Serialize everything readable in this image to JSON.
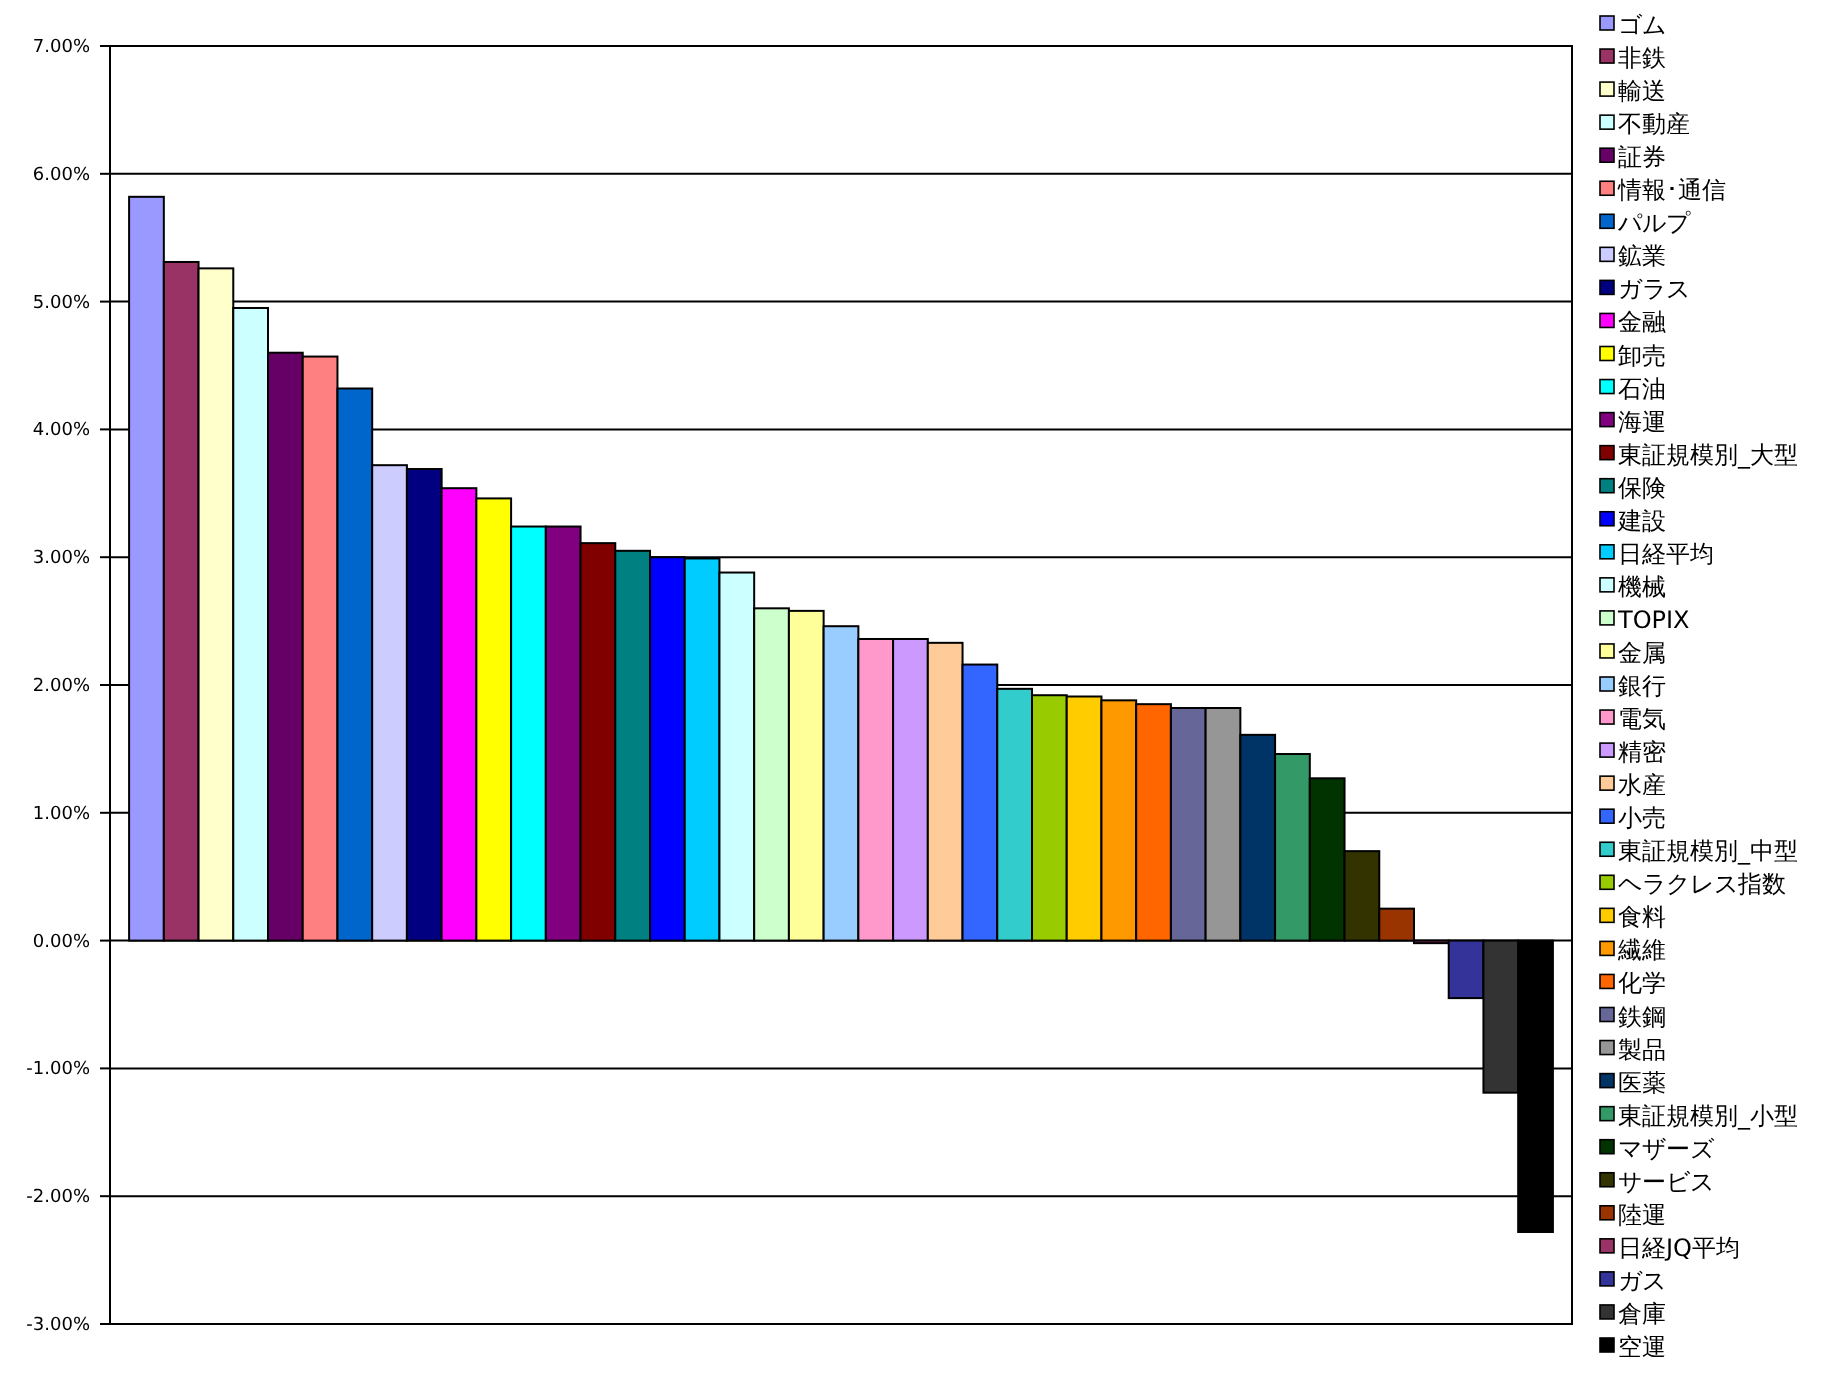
{
  "chart_data": {
    "type": "bar",
    "categories": [
      null,
      null,
      null,
      null,
      null,
      null,
      null,
      null,
      null,
      null,
      null,
      null,
      null,
      null,
      null,
      null,
      null,
      null,
      null,
      null,
      null,
      null,
      null,
      null,
      null,
      null,
      null,
      null,
      null,
      null,
      null,
      null,
      null,
      null,
      null,
      null,
      null,
      null,
      null,
      null,
      null
    ],
    "series": [
      {
        "name": "ゴム",
        "color": "#9999ff",
        "values": [
          5.82,
          null,
          null,
          null,
          null,
          null,
          null,
          null,
          null,
          null,
          null,
          null,
          null,
          null,
          null,
          null,
          null,
          null,
          null,
          null,
          null,
          null,
          null,
          null,
          null,
          null,
          null,
          null,
          null,
          null,
          null,
          null,
          null,
          null,
          null,
          null,
          null,
          null,
          null,
          null,
          null
        ]
      },
      {
        "name": "非鉄",
        "color": "#993366",
        "values": [
          null,
          5.31,
          null,
          null,
          null,
          null,
          null,
          null,
          null,
          null,
          null,
          null,
          null,
          null,
          null,
          null,
          null,
          null,
          null,
          null,
          null,
          null,
          null,
          null,
          null,
          null,
          null,
          null,
          null,
          null,
          null,
          null,
          null,
          null,
          null,
          null,
          null,
          null,
          null,
          null,
          null
        ]
      },
      {
        "name": "輸送",
        "color": "#ffffcc",
        "values": [
          null,
          null,
          5.26,
          null,
          null,
          null,
          null,
          null,
          null,
          null,
          null,
          null,
          null,
          null,
          null,
          null,
          null,
          null,
          null,
          null,
          null,
          null,
          null,
          null,
          null,
          null,
          null,
          null,
          null,
          null,
          null,
          null,
          null,
          null,
          null,
          null,
          null,
          null,
          null,
          null,
          null
        ]
      },
      {
        "name": "不動産",
        "color": "#ccffff",
        "values": [
          null,
          null,
          null,
          4.95,
          null,
          null,
          null,
          null,
          null,
          null,
          null,
          null,
          null,
          null,
          null,
          null,
          null,
          null,
          null,
          null,
          null,
          null,
          null,
          null,
          null,
          null,
          null,
          null,
          null,
          null,
          null,
          null,
          null,
          null,
          null,
          null,
          null,
          null,
          null,
          null,
          null
        ]
      },
      {
        "name": "証券",
        "color": "#660066",
        "values": [
          null,
          null,
          null,
          null,
          4.6,
          null,
          null,
          null,
          null,
          null,
          null,
          null,
          null,
          null,
          null,
          null,
          null,
          null,
          null,
          null,
          null,
          null,
          null,
          null,
          null,
          null,
          null,
          null,
          null,
          null,
          null,
          null,
          null,
          null,
          null,
          null,
          null,
          null,
          null,
          null,
          null
        ]
      },
      {
        "name": "情報･通信",
        "color": "#ff8080",
        "values": [
          null,
          null,
          null,
          null,
          null,
          4.57,
          null,
          null,
          null,
          null,
          null,
          null,
          null,
          null,
          null,
          null,
          null,
          null,
          null,
          null,
          null,
          null,
          null,
          null,
          null,
          null,
          null,
          null,
          null,
          null,
          null,
          null,
          null,
          null,
          null,
          null,
          null,
          null,
          null,
          null,
          null
        ]
      },
      {
        "name": "パルプ",
        "color": "#0066cc",
        "values": [
          null,
          null,
          null,
          null,
          null,
          null,
          4.32,
          null,
          null,
          null,
          null,
          null,
          null,
          null,
          null,
          null,
          null,
          null,
          null,
          null,
          null,
          null,
          null,
          null,
          null,
          null,
          null,
          null,
          null,
          null,
          null,
          null,
          null,
          null,
          null,
          null,
          null,
          null,
          null,
          null,
          null
        ]
      },
      {
        "name": "鉱業",
        "color": "#ccccff",
        "values": [
          null,
          null,
          null,
          null,
          null,
          null,
          null,
          3.72,
          null,
          null,
          null,
          null,
          null,
          null,
          null,
          null,
          null,
          null,
          null,
          null,
          null,
          null,
          null,
          null,
          null,
          null,
          null,
          null,
          null,
          null,
          null,
          null,
          null,
          null,
          null,
          null,
          null,
          null,
          null,
          null,
          null
        ]
      },
      {
        "name": "ガラス",
        "color": "#000080",
        "values": [
          null,
          null,
          null,
          null,
          null,
          null,
          null,
          null,
          3.69,
          null,
          null,
          null,
          null,
          null,
          null,
          null,
          null,
          null,
          null,
          null,
          null,
          null,
          null,
          null,
          null,
          null,
          null,
          null,
          null,
          null,
          null,
          null,
          null,
          null,
          null,
          null,
          null,
          null,
          null,
          null,
          null
        ]
      },
      {
        "name": "金融",
        "color": "#ff00ff",
        "values": [
          null,
          null,
          null,
          null,
          null,
          null,
          null,
          null,
          null,
          3.54,
          null,
          null,
          null,
          null,
          null,
          null,
          null,
          null,
          null,
          null,
          null,
          null,
          null,
          null,
          null,
          null,
          null,
          null,
          null,
          null,
          null,
          null,
          null,
          null,
          null,
          null,
          null,
          null,
          null,
          null,
          null
        ]
      },
      {
        "name": "卸売",
        "color": "#ffff00",
        "values": [
          null,
          null,
          null,
          null,
          null,
          null,
          null,
          null,
          null,
          null,
          3.46,
          null,
          null,
          null,
          null,
          null,
          null,
          null,
          null,
          null,
          null,
          null,
          null,
          null,
          null,
          null,
          null,
          null,
          null,
          null,
          null,
          null,
          null,
          null,
          null,
          null,
          null,
          null,
          null,
          null,
          null
        ]
      },
      {
        "name": "石油",
        "color": "#00ffff",
        "values": [
          null,
          null,
          null,
          null,
          null,
          null,
          null,
          null,
          null,
          null,
          null,
          3.24,
          null,
          null,
          null,
          null,
          null,
          null,
          null,
          null,
          null,
          null,
          null,
          null,
          null,
          null,
          null,
          null,
          null,
          null,
          null,
          null,
          null,
          null,
          null,
          null,
          null,
          null,
          null,
          null,
          null
        ]
      },
      {
        "name": "海運",
        "color": "#800080",
        "values": [
          null,
          null,
          null,
          null,
          null,
          null,
          null,
          null,
          null,
          null,
          null,
          null,
          3.24,
          null,
          null,
          null,
          null,
          null,
          null,
          null,
          null,
          null,
          null,
          null,
          null,
          null,
          null,
          null,
          null,
          null,
          null,
          null,
          null,
          null,
          null,
          null,
          null,
          null,
          null,
          null,
          null
        ]
      },
      {
        "name": "東証規模別_大型",
        "color": "#800000",
        "values": [
          null,
          null,
          null,
          null,
          null,
          null,
          null,
          null,
          null,
          null,
          null,
          null,
          null,
          3.11,
          null,
          null,
          null,
          null,
          null,
          null,
          null,
          null,
          null,
          null,
          null,
          null,
          null,
          null,
          null,
          null,
          null,
          null,
          null,
          null,
          null,
          null,
          null,
          null,
          null,
          null,
          null
        ]
      },
      {
        "name": "保険",
        "color": "#008080",
        "values": [
          null,
          null,
          null,
          null,
          null,
          null,
          null,
          null,
          null,
          null,
          null,
          null,
          null,
          null,
          3.05,
          null,
          null,
          null,
          null,
          null,
          null,
          null,
          null,
          null,
          null,
          null,
          null,
          null,
          null,
          null,
          null,
          null,
          null,
          null,
          null,
          null,
          null,
          null,
          null,
          null,
          null
        ]
      },
      {
        "name": "建設",
        "color": "#0000ff",
        "values": [
          null,
          null,
          null,
          null,
          null,
          null,
          null,
          null,
          null,
          null,
          null,
          null,
          null,
          null,
          null,
          3.0,
          null,
          null,
          null,
          null,
          null,
          null,
          null,
          null,
          null,
          null,
          null,
          null,
          null,
          null,
          null,
          null,
          null,
          null,
          null,
          null,
          null,
          null,
          null,
          null,
          null
        ]
      },
      {
        "name": "日経平均",
        "color": "#00ccff",
        "values": [
          null,
          null,
          null,
          null,
          null,
          null,
          null,
          null,
          null,
          null,
          null,
          null,
          null,
          null,
          null,
          null,
          2.99,
          null,
          null,
          null,
          null,
          null,
          null,
          null,
          null,
          null,
          null,
          null,
          null,
          null,
          null,
          null,
          null,
          null,
          null,
          null,
          null,
          null,
          null,
          null,
          null
        ]
      },
      {
        "name": "機械",
        "color": "#ccffff",
        "values": [
          null,
          null,
          null,
          null,
          null,
          null,
          null,
          null,
          null,
          null,
          null,
          null,
          null,
          null,
          null,
          null,
          null,
          2.88,
          null,
          null,
          null,
          null,
          null,
          null,
          null,
          null,
          null,
          null,
          null,
          null,
          null,
          null,
          null,
          null,
          null,
          null,
          null,
          null,
          null,
          null,
          null
        ]
      },
      {
        "name": "TOPIX",
        "color": "#ccffcc",
        "values": [
          null,
          null,
          null,
          null,
          null,
          null,
          null,
          null,
          null,
          null,
          null,
          null,
          null,
          null,
          null,
          null,
          null,
          null,
          2.6,
          null,
          null,
          null,
          null,
          null,
          null,
          null,
          null,
          null,
          null,
          null,
          null,
          null,
          null,
          null,
          null,
          null,
          null,
          null,
          null,
          null,
          null
        ]
      },
      {
        "name": "金属",
        "color": "#ffff99",
        "values": [
          null,
          null,
          null,
          null,
          null,
          null,
          null,
          null,
          null,
          null,
          null,
          null,
          null,
          null,
          null,
          null,
          null,
          null,
          null,
          2.58,
          null,
          null,
          null,
          null,
          null,
          null,
          null,
          null,
          null,
          null,
          null,
          null,
          null,
          null,
          null,
          null,
          null,
          null,
          null,
          null,
          null
        ]
      },
      {
        "name": "銀行",
        "color": "#99ccff",
        "values": [
          null,
          null,
          null,
          null,
          null,
          null,
          null,
          null,
          null,
          null,
          null,
          null,
          null,
          null,
          null,
          null,
          null,
          null,
          null,
          null,
          2.46,
          null,
          null,
          null,
          null,
          null,
          null,
          null,
          null,
          null,
          null,
          null,
          null,
          null,
          null,
          null,
          null,
          null,
          null,
          null,
          null
        ]
      },
      {
        "name": "電気",
        "color": "#ff99cc",
        "values": [
          null,
          null,
          null,
          null,
          null,
          null,
          null,
          null,
          null,
          null,
          null,
          null,
          null,
          null,
          null,
          null,
          null,
          null,
          null,
          null,
          null,
          2.36,
          null,
          null,
          null,
          null,
          null,
          null,
          null,
          null,
          null,
          null,
          null,
          null,
          null,
          null,
          null,
          null,
          null,
          null,
          null
        ]
      },
      {
        "name": "精密",
        "color": "#cc99ff",
        "values": [
          null,
          null,
          null,
          null,
          null,
          null,
          null,
          null,
          null,
          null,
          null,
          null,
          null,
          null,
          null,
          null,
          null,
          null,
          null,
          null,
          null,
          null,
          2.36,
          null,
          null,
          null,
          null,
          null,
          null,
          null,
          null,
          null,
          null,
          null,
          null,
          null,
          null,
          null,
          null,
          null,
          null
        ]
      },
      {
        "name": "水産",
        "color": "#ffcc99",
        "values": [
          null,
          null,
          null,
          null,
          null,
          null,
          null,
          null,
          null,
          null,
          null,
          null,
          null,
          null,
          null,
          null,
          null,
          null,
          null,
          null,
          null,
          null,
          null,
          2.33,
          null,
          null,
          null,
          null,
          null,
          null,
          null,
          null,
          null,
          null,
          null,
          null,
          null,
          null,
          null,
          null,
          null
        ]
      },
      {
        "name": "小売",
        "color": "#3366ff",
        "values": [
          null,
          null,
          null,
          null,
          null,
          null,
          null,
          null,
          null,
          null,
          null,
          null,
          null,
          null,
          null,
          null,
          null,
          null,
          null,
          null,
          null,
          null,
          null,
          null,
          2.16,
          null,
          null,
          null,
          null,
          null,
          null,
          null,
          null,
          null,
          null,
          null,
          null,
          null,
          null,
          null,
          null
        ]
      },
      {
        "name": "東証規模別_中型",
        "color": "#33cccc",
        "values": [
          null,
          null,
          null,
          null,
          null,
          null,
          null,
          null,
          null,
          null,
          null,
          null,
          null,
          null,
          null,
          null,
          null,
          null,
          null,
          null,
          null,
          null,
          null,
          null,
          null,
          1.97,
          null,
          null,
          null,
          null,
          null,
          null,
          null,
          null,
          null,
          null,
          null,
          null,
          null,
          null,
          null
        ]
      },
      {
        "name": "ヘラクレス指数",
        "color": "#99cc00",
        "values": [
          null,
          null,
          null,
          null,
          null,
          null,
          null,
          null,
          null,
          null,
          null,
          null,
          null,
          null,
          null,
          null,
          null,
          null,
          null,
          null,
          null,
          null,
          null,
          null,
          null,
          null,
          1.92,
          null,
          null,
          null,
          null,
          null,
          null,
          null,
          null,
          null,
          null,
          null,
          null,
          null,
          null
        ]
      },
      {
        "name": "食料",
        "color": "#ffcc00",
        "values": [
          null,
          null,
          null,
          null,
          null,
          null,
          null,
          null,
          null,
          null,
          null,
          null,
          null,
          null,
          null,
          null,
          null,
          null,
          null,
          null,
          null,
          null,
          null,
          null,
          null,
          null,
          null,
          1.91,
          null,
          null,
          null,
          null,
          null,
          null,
          null,
          null,
          null,
          null,
          null,
          null,
          null
        ]
      },
      {
        "name": "繊維",
        "color": "#ff9900",
        "values": [
          null,
          null,
          null,
          null,
          null,
          null,
          null,
          null,
          null,
          null,
          null,
          null,
          null,
          null,
          null,
          null,
          null,
          null,
          null,
          null,
          null,
          null,
          null,
          null,
          null,
          null,
          null,
          null,
          1.88,
          null,
          null,
          null,
          null,
          null,
          null,
          null,
          null,
          null,
          null,
          null,
          null
        ]
      },
      {
        "name": "化学",
        "color": "#ff6600",
        "values": [
          null,
          null,
          null,
          null,
          null,
          null,
          null,
          null,
          null,
          null,
          null,
          null,
          null,
          null,
          null,
          null,
          null,
          null,
          null,
          null,
          null,
          null,
          null,
          null,
          null,
          null,
          null,
          null,
          null,
          1.85,
          null,
          null,
          null,
          null,
          null,
          null,
          null,
          null,
          null,
          null,
          null
        ]
      },
      {
        "name": "鉄鋼",
        "color": "#666699",
        "values": [
          null,
          null,
          null,
          null,
          null,
          null,
          null,
          null,
          null,
          null,
          null,
          null,
          null,
          null,
          null,
          null,
          null,
          null,
          null,
          null,
          null,
          null,
          null,
          null,
          null,
          null,
          null,
          null,
          null,
          null,
          1.82,
          null,
          null,
          null,
          null,
          null,
          null,
          null,
          null,
          null,
          null
        ]
      },
      {
        "name": "製品",
        "color": "#969696",
        "values": [
          null,
          null,
          null,
          null,
          null,
          null,
          null,
          null,
          null,
          null,
          null,
          null,
          null,
          null,
          null,
          null,
          null,
          null,
          null,
          null,
          null,
          null,
          null,
          null,
          null,
          null,
          null,
          null,
          null,
          null,
          null,
          1.82,
          null,
          null,
          null,
          null,
          null,
          null,
          null,
          null,
          null
        ]
      },
      {
        "name": "医薬",
        "color": "#003366",
        "values": [
          null,
          null,
          null,
          null,
          null,
          null,
          null,
          null,
          null,
          null,
          null,
          null,
          null,
          null,
          null,
          null,
          null,
          null,
          null,
          null,
          null,
          null,
          null,
          null,
          null,
          null,
          null,
          null,
          null,
          null,
          null,
          null,
          1.61,
          null,
          null,
          null,
          null,
          null,
          null,
          null,
          null
        ]
      },
      {
        "name": "東証規模別_小型",
        "color": "#339966",
        "values": [
          null,
          null,
          null,
          null,
          null,
          null,
          null,
          null,
          null,
          null,
          null,
          null,
          null,
          null,
          null,
          null,
          null,
          null,
          null,
          null,
          null,
          null,
          null,
          null,
          null,
          null,
          null,
          null,
          null,
          null,
          null,
          null,
          null,
          1.46,
          null,
          null,
          null,
          null,
          null,
          null,
          null
        ]
      },
      {
        "name": "マザーズ",
        "color": "#003300",
        "values": [
          null,
          null,
          null,
          null,
          null,
          null,
          null,
          null,
          null,
          null,
          null,
          null,
          null,
          null,
          null,
          null,
          null,
          null,
          null,
          null,
          null,
          null,
          null,
          null,
          null,
          null,
          null,
          null,
          null,
          null,
          null,
          null,
          null,
          null,
          1.27,
          null,
          null,
          null,
          null,
          null,
          null
        ]
      },
      {
        "name": "サービス",
        "color": "#333300",
        "values": [
          null,
          null,
          null,
          null,
          null,
          null,
          null,
          null,
          null,
          null,
          null,
          null,
          null,
          null,
          null,
          null,
          null,
          null,
          null,
          null,
          null,
          null,
          null,
          null,
          null,
          null,
          null,
          null,
          null,
          null,
          null,
          null,
          null,
          null,
          null,
          0.7,
          null,
          null,
          null,
          null,
          null
        ]
      },
      {
        "name": "陸運",
        "color": "#993300",
        "values": [
          null,
          null,
          null,
          null,
          null,
          null,
          null,
          null,
          null,
          null,
          null,
          null,
          null,
          null,
          null,
          null,
          null,
          null,
          null,
          null,
          null,
          null,
          null,
          null,
          null,
          null,
          null,
          null,
          null,
          null,
          null,
          null,
          null,
          null,
          null,
          null,
          0.25,
          null,
          null,
          null,
          null
        ]
      },
      {
        "name": "日経JQ平均",
        "color": "#993366",
        "values": [
          null,
          null,
          null,
          null,
          null,
          null,
          null,
          null,
          null,
          null,
          null,
          null,
          null,
          null,
          null,
          null,
          null,
          null,
          null,
          null,
          null,
          null,
          null,
          null,
          null,
          null,
          null,
          null,
          null,
          null,
          null,
          null,
          null,
          null,
          null,
          null,
          null,
          -0.02,
          null,
          null,
          null
        ]
      },
      {
        "name": "ガス",
        "color": "#333399",
        "values": [
          null,
          null,
          null,
          null,
          null,
          null,
          null,
          null,
          null,
          null,
          null,
          null,
          null,
          null,
          null,
          null,
          null,
          null,
          null,
          null,
          null,
          null,
          null,
          null,
          null,
          null,
          null,
          null,
          null,
          null,
          null,
          null,
          null,
          null,
          null,
          null,
          null,
          null,
          -0.45,
          null,
          null
        ]
      },
      {
        "name": "倉庫",
        "color": "#333333",
        "values": [
          null,
          null,
          null,
          null,
          null,
          null,
          null,
          null,
          null,
          null,
          null,
          null,
          null,
          null,
          null,
          null,
          null,
          null,
          null,
          null,
          null,
          null,
          null,
          null,
          null,
          null,
          null,
          null,
          null,
          null,
          null,
          null,
          null,
          null,
          null,
          null,
          null,
          null,
          null,
          -1.19,
          null
        ]
      },
      {
        "name": "空運",
        "color": "#000000",
        "values": [
          null,
          null,
          null,
          null,
          null,
          null,
          null,
          null,
          null,
          null,
          null,
          null,
          null,
          null,
          null,
          null,
          null,
          null,
          null,
          null,
          null,
          null,
          null,
          null,
          null,
          null,
          null,
          null,
          null,
          null,
          null,
          null,
          null,
          null,
          null,
          null,
          null,
          null,
          null,
          null,
          -2.28
        ]
      }
    ],
    "ylim": [
      -3,
      7
    ],
    "yticks": [
      {
        "value": -3,
        "label": "-3.00%"
      },
      {
        "value": -2,
        "label": "-2.00%"
      },
      {
        "value": -1,
        "label": "-1.00%"
      },
      {
        "value": 0,
        "label": "0.00%"
      },
      {
        "value": 1,
        "label": "1.00%"
      },
      {
        "value": 2,
        "label": "2.00%"
      },
      {
        "value": 3,
        "label": "3.00%"
      },
      {
        "value": 4,
        "label": "4.00%"
      },
      {
        "value": 5,
        "label": "5.00%"
      },
      {
        "value": 6,
        "label": "6.00%"
      },
      {
        "value": 7,
        "label": "7.00%"
      }
    ],
    "grid": "y",
    "legend": "right"
  }
}
